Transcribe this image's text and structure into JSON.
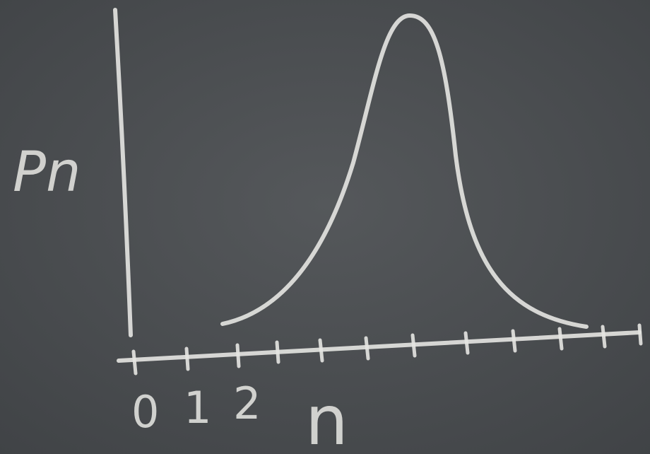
{
  "axis_labels": {
    "y": "Pn",
    "x": "n"
  },
  "tick_labels": [
    "0",
    "1",
    "2"
  ]
}
